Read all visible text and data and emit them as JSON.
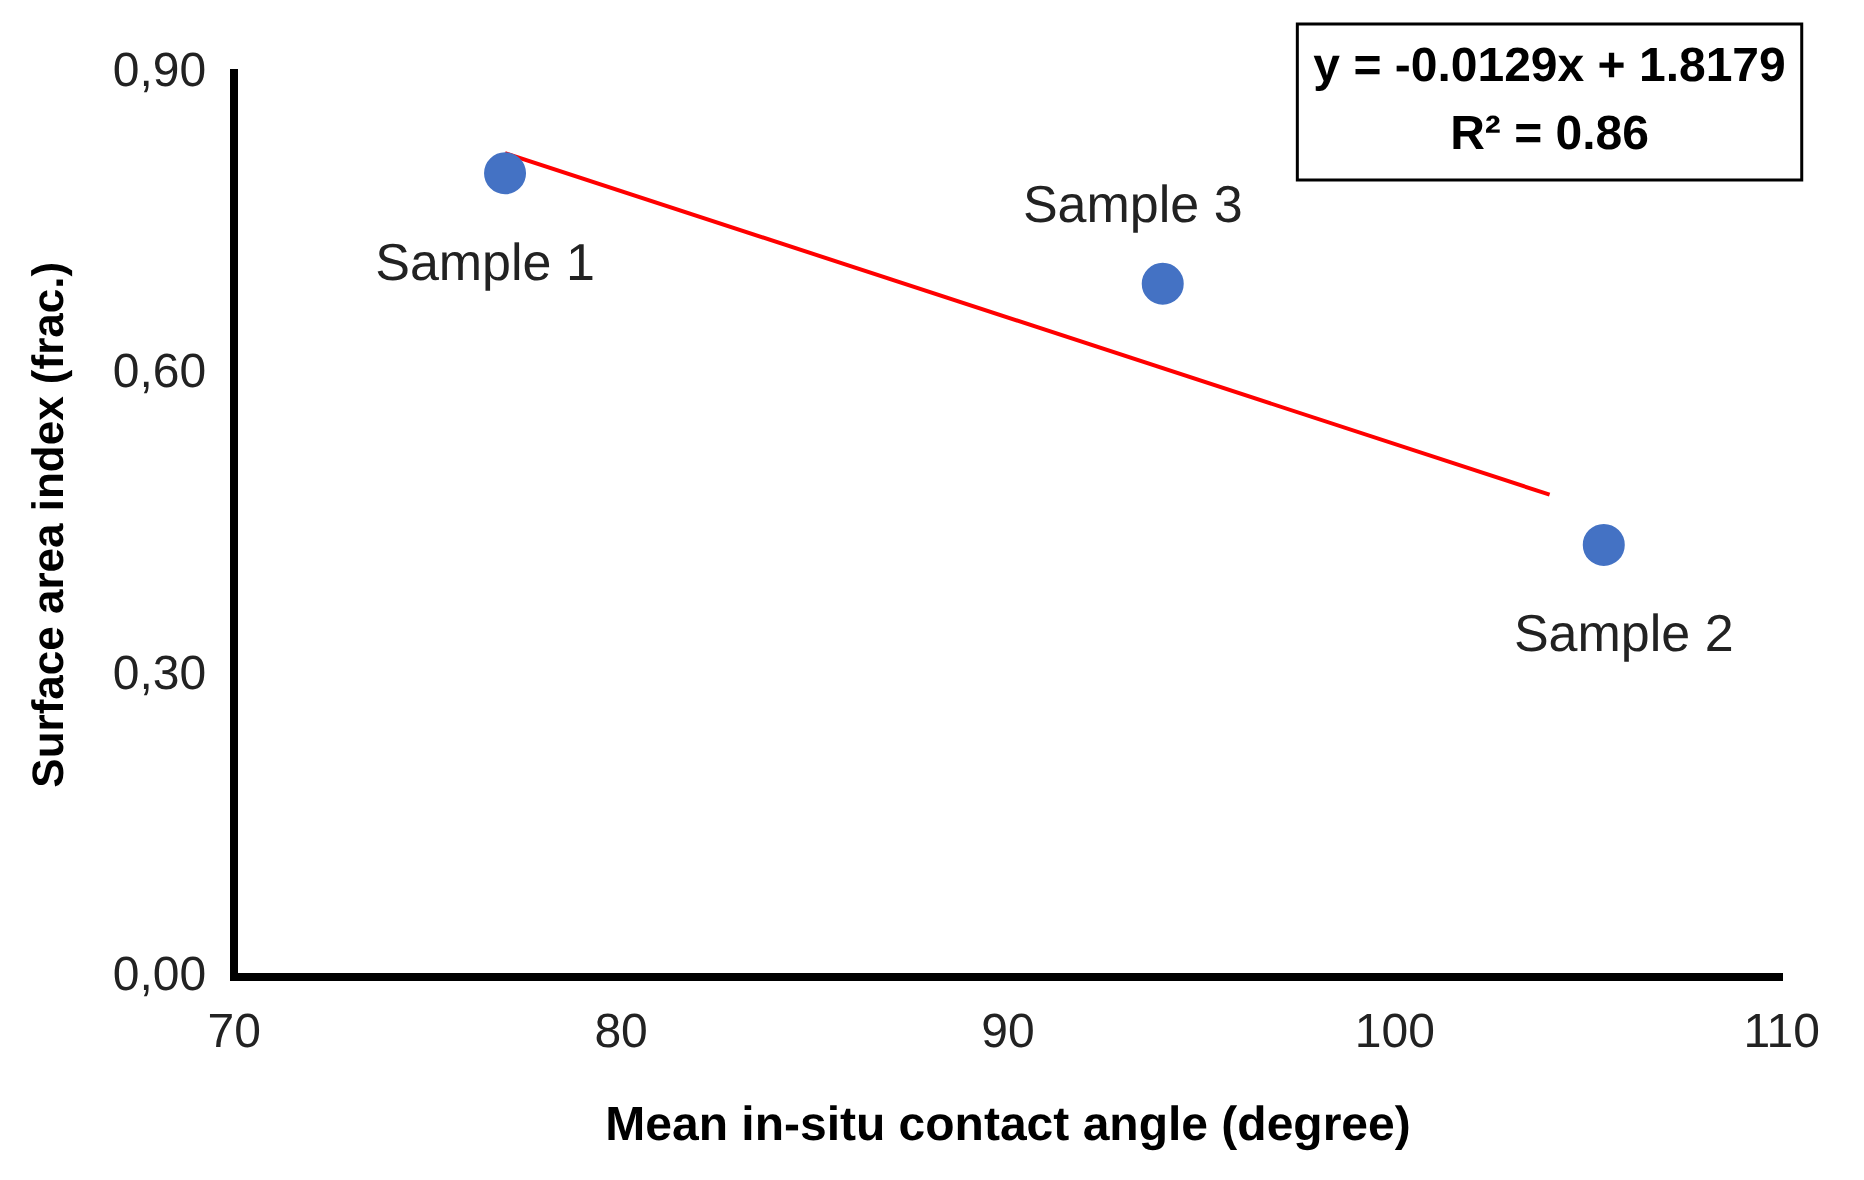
{
  "chart_data": {
    "type": "scatter",
    "xlabel": "Mean in-situ contact angle (degree)",
    "ylabel": "Surface area index (frac.)",
    "xlim": [
      70,
      110
    ],
    "xticks": [
      70,
      80,
      90,
      100,
      110
    ],
    "ylim": [
      0,
      0.9
    ],
    "yticks": [
      {
        "value": 0,
        "label": "0,00"
      },
      {
        "value": 0.3,
        "label": "0,30"
      },
      {
        "value": 0.6,
        "label": "0,60"
      },
      {
        "value": 0.9,
        "label": "0,90"
      }
    ],
    "series": [
      {
        "color": "#4472c4",
        "marker": "circle",
        "x": [
          77,
          105.4,
          94
        ],
        "values": [
          0.8,
          0.43,
          0.69
        ]
      },
      {
        "type": "line",
        "color": "#ff0000",
        "marker": "none",
        "x": [
          77,
          104
        ],
        "values": [
          0.82,
          0.48
        ]
      }
    ],
    "annotations": [
      {
        "text": "Sample 1",
        "x": 77,
        "y": 0.8
      },
      {
        "text": "Sample 2",
        "x": 105.4,
        "y": 0.43
      },
      {
        "text": "Sample 3",
        "x": 94,
        "y": 0.69
      },
      "y = -0.0129x + 1.8179",
      "R² = 0.86"
    ],
    "grid": false,
    "legend": false
  }
}
